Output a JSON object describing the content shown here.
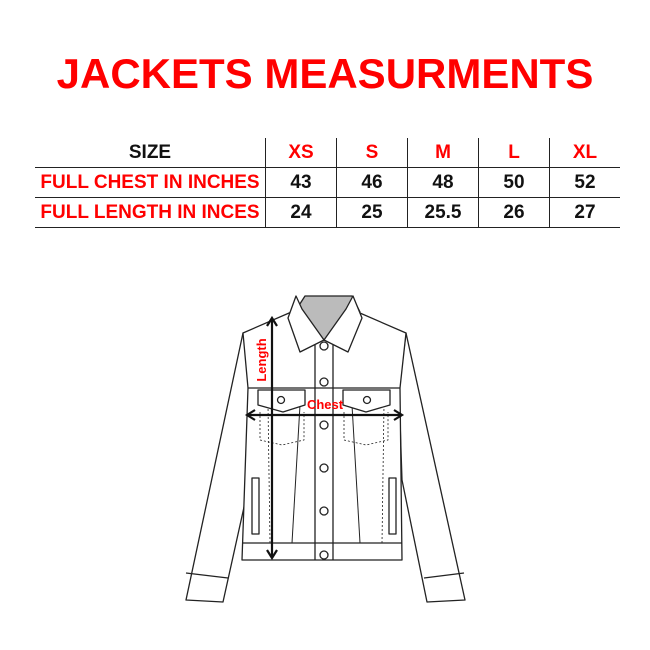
{
  "title": "JACKETS MEASURMENTS",
  "table": {
    "header": {
      "label": "SIZE",
      "sizes": [
        "XS",
        "S",
        "M",
        "L",
        "XL"
      ]
    },
    "rows": [
      {
        "label": "FULL CHEST IN INCHES",
        "values": [
          "43",
          "46",
          "48",
          "50",
          "52"
        ]
      },
      {
        "label": "FULL LENGTH IN INCES",
        "values": [
          "24",
          "25",
          "25.5",
          "26",
          "27"
        ]
      }
    ]
  },
  "diagram": {
    "length_label": "Length",
    "chest_label": "Chest"
  },
  "colors": {
    "accent": "#ff0000",
    "text": "#111111"
  }
}
